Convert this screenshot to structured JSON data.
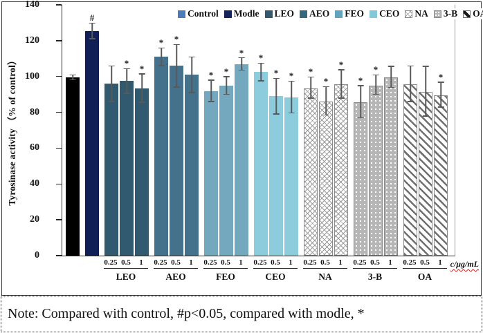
{
  "figure": {
    "note": "Note: Compared with control, #p<0.05, compared with modle, *"
  },
  "chart_data": {
    "type": "bar",
    "title": "",
    "ylabel": "Tyrosinase activity （% of control）",
    "xlabel": "c/μg/mL",
    "ylim": [
      0,
      140
    ],
    "yticks": [
      0,
      20,
      40,
      60,
      80,
      100,
      120,
      140
    ],
    "grid": false,
    "legend_position": "top",
    "annotation_meaning": "# = vs control p<0.05, * = vs modle",
    "legend": [
      {
        "label": "Control",
        "style": "control",
        "swatch_color": "#4a7cba"
      },
      {
        "label": "Modle",
        "style": "modle",
        "swatch_color": "#16245c"
      },
      {
        "label": "LEO",
        "style": "leo",
        "swatch_color": "#32596d"
      },
      {
        "label": "AEO",
        "style": "aeo",
        "swatch_color": "#35687d"
      },
      {
        "label": "FEO",
        "style": "feo",
        "swatch_color": "#62a4bd"
      },
      {
        "label": "CEO",
        "style": "ceo",
        "swatch_color": "#82c7da"
      },
      {
        "label": "NA",
        "style": "na",
        "swatch_color": "pattern-crosshatch"
      },
      {
        "label": "3-B",
        "style": "b3",
        "swatch_color": "pattern-dots"
      },
      {
        "label": "OA",
        "style": "oa",
        "swatch_color": "pattern-diagonal"
      }
    ],
    "bar_colors": {
      "control": "#000000",
      "modle": "#101f56",
      "leo": "#315a70",
      "aeo": "#44718c",
      "feo": "#74a8be",
      "ceo": "#8cccdc"
    },
    "groups": [
      {
        "name": "Control",
        "axis_label": "",
        "style": "control",
        "bars": [
          {
            "dose": "",
            "value": 99.5,
            "err": 1.5,
            "mark": ""
          }
        ]
      },
      {
        "name": "Modle",
        "axis_label": "",
        "style": "modle",
        "bars": [
          {
            "dose": "",
            "value": 125.5,
            "err": 4.5,
            "mark": "#"
          }
        ]
      },
      {
        "name": "LEO",
        "axis_label": "LEO",
        "style": "leo",
        "bars": [
          {
            "dose": "0.25",
            "value": 96,
            "err": 10,
            "mark": ""
          },
          {
            "dose": "0.5",
            "value": 97.5,
            "err": 7,
            "mark": "*"
          },
          {
            "dose": "1",
            "value": 93.5,
            "err": 8,
            "mark": "*"
          }
        ]
      },
      {
        "name": "AEO",
        "axis_label": "AEO",
        "style": "aeo",
        "bars": [
          {
            "dose": "0.25",
            "value": 111,
            "err": 5,
            "mark": "*"
          },
          {
            "dose": "0.5",
            "value": 106,
            "err": 12,
            "mark": "*"
          },
          {
            "dose": "1",
            "value": 101,
            "err": 10,
            "mark": ""
          }
        ]
      },
      {
        "name": "FEO",
        "axis_label": "FEO",
        "style": "feo",
        "bars": [
          {
            "dose": "0.25",
            "value": 92,
            "err": 6,
            "mark": "*"
          },
          {
            "dose": "0.5",
            "value": 95,
            "err": 5,
            "mark": "*"
          },
          {
            "dose": "1",
            "value": 107,
            "err": 3.5,
            "mark": "*"
          }
        ]
      },
      {
        "name": "CEO",
        "axis_label": "CEO",
        "style": "ceo",
        "bars": [
          {
            "dose": "0.25",
            "value": 102.5,
            "err": 5,
            "mark": "*"
          },
          {
            "dose": "0.5",
            "value": 89,
            "err": 10,
            "mark": "*"
          },
          {
            "dose": "1",
            "value": 88.5,
            "err": 9,
            "mark": "*"
          }
        ]
      },
      {
        "name": "NA",
        "axis_label": "NA",
        "style": "na",
        "bars": [
          {
            "dose": "0.25",
            "value": 93.5,
            "err": 6,
            "mark": "*"
          },
          {
            "dose": "0.5",
            "value": 86,
            "err": 8,
            "mark": "*"
          },
          {
            "dose": "1",
            "value": 95.5,
            "err": 8,
            "mark": "*"
          }
        ]
      },
      {
        "name": "3-B",
        "axis_label": "3-B",
        "style": "b3",
        "bars": [
          {
            "dose": "0.25",
            "value": 85.5,
            "err": 9,
            "mark": "*"
          },
          {
            "dose": "0.5",
            "value": 95,
            "err": 5.5,
            "mark": "*"
          },
          {
            "dose": "1",
            "value": 99.5,
            "err": 6,
            "mark": ""
          }
        ]
      },
      {
        "name": "OA",
        "axis_label": "OA",
        "style": "oa",
        "bars": [
          {
            "dose": "0.25",
            "value": 95.5,
            "err": 10,
            "mark": ""
          },
          {
            "dose": "0.5",
            "value": 91.5,
            "err": 14,
            "mark": ""
          },
          {
            "dose": "1",
            "value": 89.5,
            "err": 7,
            "mark": "*"
          }
        ]
      }
    ]
  }
}
